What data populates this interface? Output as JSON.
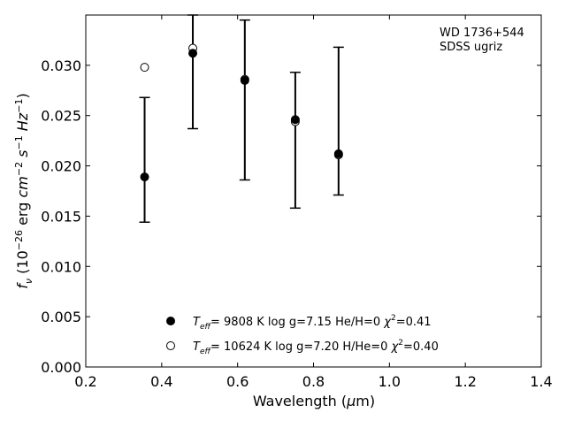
{
  "chart_data": {
    "type": "scatter",
    "annotation": {
      "line1": "WD 1736+544",
      "line2": "SDSS ugriz"
    },
    "xlabel": {
      "main": "Wavelength (",
      "mu": "μ",
      "tail": "m)"
    },
    "ylabel": {
      "f": "f",
      "nu": "ν",
      "unit_open": " (10",
      "exp1": "−26",
      "erg": " erg ",
      "cm": "cm",
      "exp2": "−2",
      "s": " s",
      "exp3": "−1",
      "hz": " Hz",
      "exp4": "−1",
      "close": ")"
    },
    "xlim": [
      0.2,
      1.4
    ],
    "ylim": [
      0.0,
      0.035
    ],
    "xticks": [
      "0.2",
      "0.4",
      "0.6",
      "0.8",
      "1.0",
      "1.2",
      "1.4"
    ],
    "yticks": [
      "0.000",
      "0.005",
      "0.010",
      "0.015",
      "0.020",
      "0.025",
      "0.030"
    ],
    "grid": false,
    "legend_position": "bottom-center",
    "series": [
      {
        "marker": "filled-circle",
        "legend": {
          "t": "T",
          "eff": "eff",
          "text": "=  9808 K  log g=7.15  He/H=0  ",
          "chi": "χ",
          "chi_exp": "2",
          "chi_val": "=0.41"
        },
        "points": [
          {
            "x": 0.355,
            "y": 0.0189,
            "err_low": 0.0144,
            "err_high": 0.0268
          },
          {
            "x": 0.482,
            "y": 0.0312,
            "err_low": 0.0237,
            "err_high": 0.0352
          },
          {
            "x": 0.619,
            "y": 0.0285,
            "err_low": 0.0186,
            "err_high": 0.0345
          },
          {
            "x": 0.752,
            "y": 0.0246,
            "err_low": 0.0158,
            "err_high": 0.0293
          },
          {
            "x": 0.866,
            "y": 0.0212,
            "err_low": 0.0171,
            "err_high": 0.0318
          }
        ]
      },
      {
        "marker": "open-circle",
        "legend": {
          "t": "T",
          "eff": "eff",
          "text": "= 10624 K  log g=7.20  H/He=0  ",
          "chi": "χ",
          "chi_exp": "2",
          "chi_val": "=0.40"
        },
        "points": [
          {
            "x": 0.355,
            "y": 0.0298
          },
          {
            "x": 0.482,
            "y": 0.0317
          },
          {
            "x": 0.619,
            "y": 0.0286
          },
          {
            "x": 0.752,
            "y": 0.0244
          },
          {
            "x": 0.866,
            "y": 0.0211
          }
        ]
      }
    ]
  }
}
